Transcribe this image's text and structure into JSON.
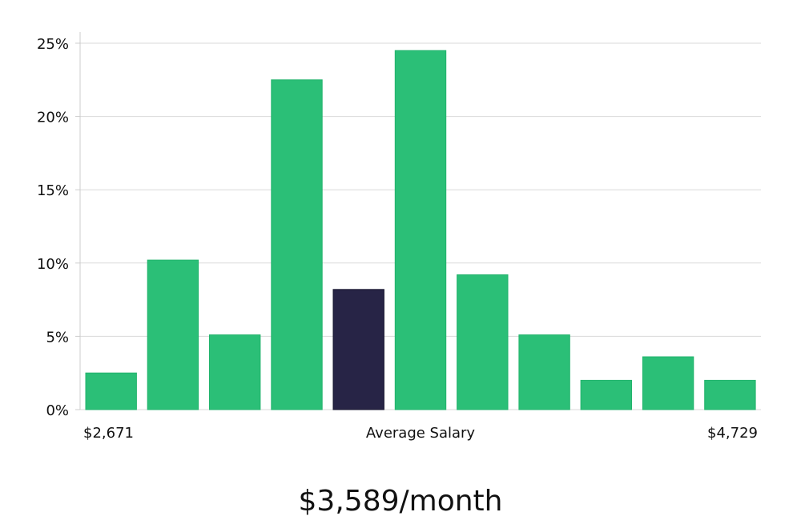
{
  "chart_data": {
    "type": "bar",
    "categories": [
      "1",
      "2",
      "3",
      "4",
      "5",
      "6",
      "7",
      "8",
      "9",
      "10",
      "11"
    ],
    "values": [
      2.5,
      10.2,
      5.1,
      22.5,
      8.2,
      24.5,
      9.2,
      5.1,
      2.0,
      3.6,
      2.0
    ],
    "highlight_index": 4,
    "ylim": [
      0,
      25
    ],
    "yticks": [
      0,
      5,
      10,
      15,
      20,
      25
    ],
    "ytick_suffix": "%",
    "x_min_label": "$2,671",
    "x_center_label": "Average Salary",
    "x_max_label": "$4,729",
    "grid": true,
    "colors": {
      "bar": "#2bbf77",
      "highlight": "#272446",
      "grid": "#d9d9d9",
      "axis": "#cccccc"
    }
  },
  "footer": {
    "average_text": "$3,589/month"
  }
}
